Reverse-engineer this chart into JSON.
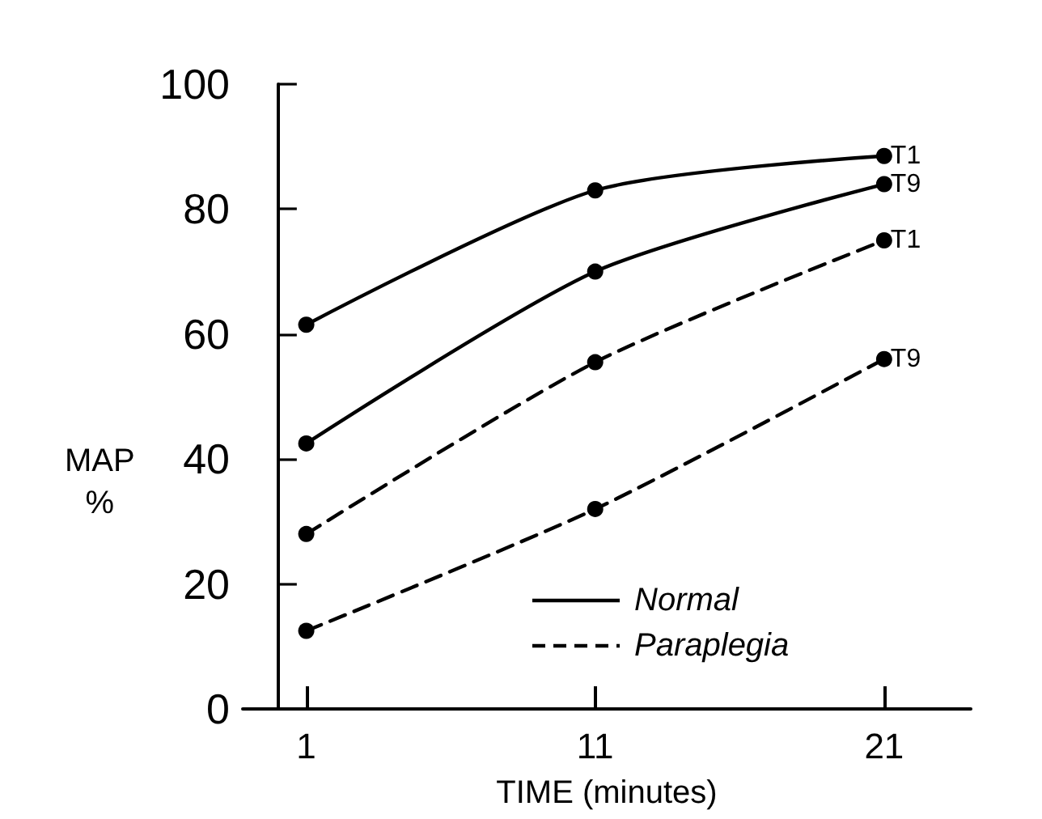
{
  "chart_data": {
    "type": "line",
    "xlabel": "TIME (minutes)",
    "ylabel": "MAP\n%",
    "x": [
      1,
      11,
      21
    ],
    "series": [
      {
        "name": "T1",
        "color": "#000000",
        "line_style": "solid",
        "values": [
          61.5,
          83,
          88.5
        ]
      },
      {
        "name": "T9",
        "color": "#000000",
        "line_style": "solid",
        "values": [
          42.5,
          70,
          84
        ]
      },
      {
        "name": "T1",
        "color": "#000000",
        "line_style": "dashed",
        "values": [
          28,
          55.5,
          75
        ]
      },
      {
        "name": "T9",
        "color": "#000000",
        "line_style": "dashed",
        "values": [
          12.5,
          32,
          56
        ]
      }
    ],
    "xlim": [
      -1.2,
      24
    ],
    "xticks": [
      1,
      11,
      21
    ],
    "ylim": [
      0,
      100
    ],
    "yticks": [
      0,
      20,
      40,
      60,
      80,
      100
    ],
    "annotations": [
      "Normal",
      "Paraplegia"
    ],
    "marker": "circle",
    "grid": false,
    "legend": false
  }
}
